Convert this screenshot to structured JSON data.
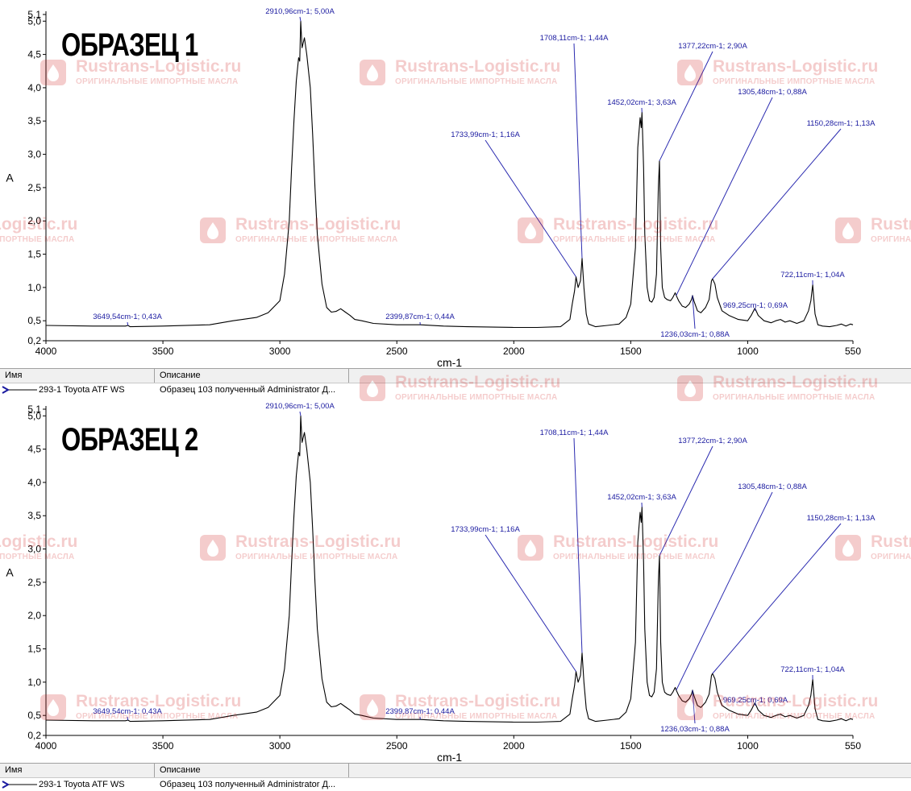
{
  "watermark": {
    "brand": "Rustrans-Logistic.ru",
    "tagline": "ОРИГИНАЛЬНЫЕ ИМПОРТНЫЕ МАСЛА",
    "color": "#d21e1e"
  },
  "panels": [
    {
      "title": "ОБРАЗЕЦ 1",
      "legend": {
        "header_name": "Имя",
        "header_description": "Описание",
        "row_name": "293-1 Toyota ATF WS",
        "row_description": "Образец 103 полученный Administrator Д..."
      }
    },
    {
      "title": "ОБРАЗЕЦ 2",
      "legend": {
        "header_name": "Имя",
        "header_description": "Описание",
        "row_name": "293-1 Toyota ATF WS",
        "row_description": "Образец 103 полученный Administrator Д..."
      }
    }
  ],
  "chart_data": [
    {
      "type": "line",
      "title": "ОБРАЗЕЦ 1",
      "xlabel": "cm-1",
      "ylabel": "A",
      "xlim": [
        4000,
        550
      ],
      "ylim": [
        0.2,
        5.1
      ],
      "xticks": [
        "4000",
        "3500",
        "3000",
        "2500",
        "2000",
        "1500",
        "1000",
        "550"
      ],
      "yticks": [
        "5,1",
        "5,0",
        "4,5",
        "4,0",
        "3,5",
        "3,0",
        "2,5",
        "2,0",
        "1,5",
        "1,0",
        "0,5",
        "0,2"
      ],
      "series": [
        {
          "name": "293-1 Toyota ATF WS",
          "x": [
            4000,
            3800,
            3660,
            3649.54,
            3640,
            3500,
            3300,
            3200,
            3160,
            3100,
            3050,
            3000,
            2980,
            2960,
            2950,
            2940,
            2930,
            2920,
            2915,
            2910.96,
            2905,
            2895,
            2885,
            2870,
            2860,
            2850,
            2840,
            2820,
            2800,
            2780,
            2760,
            2740,
            2720,
            2700,
            2680,
            2650,
            2600,
            2500,
            2399.87,
            2300,
            2200,
            2000,
            1900,
            1800,
            1760,
            1750,
            1740,
            1733.99,
            1725,
            1715,
            1708.11,
            1700,
            1690,
            1680,
            1650,
            1600,
            1550,
            1520,
            1500,
            1480,
            1470,
            1460,
            1455,
            1452.02,
            1445,
            1440,
            1430,
            1420,
            1410,
            1400,
            1390,
            1382,
            1377.22,
            1372,
            1365,
            1355,
            1345,
            1330,
            1320,
            1310,
            1305.48,
            1295,
            1280,
            1265,
            1250,
            1240,
            1236.03,
            1230,
            1215,
            1200,
            1180,
            1165,
            1160,
            1155,
            1150.28,
            1140,
            1130,
            1110,
            1080,
            1040,
            1000,
            985,
            969.25,
            955,
            930,
            900,
            880,
            860,
            840,
            820,
            790,
            760,
            740,
            730,
            725,
            722.11,
            718,
            712,
            700,
            680,
            650,
            620,
            600,
            580,
            560,
            550
          ],
          "values": [
            0.43,
            0.42,
            0.42,
            0.43,
            0.41,
            0.42,
            0.44,
            0.5,
            0.52,
            0.55,
            0.62,
            0.8,
            1.2,
            2.0,
            2.8,
            3.5,
            4.1,
            4.45,
            4.4,
            5.0,
            4.6,
            4.75,
            4.5,
            4.0,
            3.3,
            2.5,
            1.8,
            1.05,
            0.7,
            0.63,
            0.64,
            0.68,
            0.63,
            0.58,
            0.52,
            0.5,
            0.46,
            0.44,
            0.44,
            0.42,
            0.41,
            0.4,
            0.4,
            0.41,
            0.52,
            0.75,
            0.95,
            1.16,
            1.0,
            1.1,
            1.44,
            1.0,
            0.6,
            0.45,
            0.41,
            0.43,
            0.45,
            0.55,
            0.75,
            1.6,
            3.1,
            3.55,
            3.4,
            3.63,
            2.8,
            1.8,
            1.0,
            0.8,
            0.78,
            0.85,
            1.2,
            2.5,
            2.9,
            1.6,
            1.0,
            0.85,
            0.82,
            0.8,
            0.85,
            0.92,
            0.88,
            0.8,
            0.72,
            0.7,
            0.75,
            0.82,
            0.88,
            0.8,
            0.65,
            0.62,
            0.7,
            0.82,
            0.95,
            1.1,
            1.13,
            1.05,
            0.85,
            0.65,
            0.58,
            0.52,
            0.5,
            0.58,
            0.69,
            0.58,
            0.5,
            0.47,
            0.5,
            0.52,
            0.48,
            0.5,
            0.46,
            0.5,
            0.65,
            0.8,
            0.95,
            1.04,
            0.85,
            0.6,
            0.44,
            0.42,
            0.41,
            0.43,
            0.45,
            0.42,
            0.45,
            0.44
          ]
        }
      ],
      "annotations": [
        {
          "label": "2910,96cm-1; 5,00A",
          "x": 2910.96,
          "y": 5.0
        },
        {
          "label": "1708,11cm-1; 1,44A",
          "x": 1708.11,
          "y": 1.44
        },
        {
          "label": "1377,22cm-1; 2,90A",
          "x": 1377.22,
          "y": 2.9
        },
        {
          "label": "1452,02cm-1; 3,63A",
          "x": 1452.02,
          "y": 3.63
        },
        {
          "label": "1305,48cm-1; 0,88A",
          "x": 1305.48,
          "y": 0.88
        },
        {
          "label": "1733,99cm-1; 1,16A",
          "x": 1733.99,
          "y": 1.16
        },
        {
          "label": "1150,28cm-1; 1,13A",
          "x": 1150.28,
          "y": 1.13
        },
        {
          "label": "722,11cm-1; 1,04A",
          "x": 722.11,
          "y": 1.04
        },
        {
          "label": "3649,54cm-1; 0,43A",
          "x": 3649.54,
          "y": 0.43
        },
        {
          "label": "2399,87cm-1; 0,44A",
          "x": 2399.87,
          "y": 0.44
        },
        {
          "label": "969,25cm-1; 0,69A",
          "x": 969.25,
          "y": 0.69
        },
        {
          "label": "1236,03cm-1; 0,88A",
          "x": 1236.03,
          "y": 0.88
        }
      ]
    },
    {
      "type": "line",
      "title": "ОБРАЗЕЦ 2",
      "xlabel": "cm-1",
      "ylabel": "A",
      "xlim": [
        4000,
        550
      ],
      "ylim": [
        0.2,
        5.1
      ],
      "xticks": [
        "4000",
        "3500",
        "3000",
        "2500",
        "2000",
        "1500",
        "1000",
        "550"
      ],
      "yticks": [
        "5,1",
        "5,0",
        "4,5",
        "4,0",
        "3,5",
        "3,0",
        "2,5",
        "2,0",
        "1,5",
        "1,0",
        "0,5",
        "0,2"
      ],
      "series": [
        {
          "name": "293-1 Toyota ATF WS",
          "x": [
            4000,
            3800,
            3660,
            3649.54,
            3640,
            3500,
            3300,
            3200,
            3160,
            3100,
            3050,
            3000,
            2980,
            2960,
            2950,
            2940,
            2930,
            2920,
            2915,
            2910.96,
            2905,
            2895,
            2885,
            2870,
            2860,
            2850,
            2840,
            2820,
            2800,
            2780,
            2760,
            2740,
            2720,
            2700,
            2680,
            2650,
            2600,
            2500,
            2399.87,
            2300,
            2200,
            2000,
            1900,
            1800,
            1760,
            1750,
            1740,
            1733.99,
            1725,
            1715,
            1708.11,
            1700,
            1690,
            1680,
            1650,
            1600,
            1550,
            1520,
            1500,
            1480,
            1470,
            1460,
            1455,
            1452.02,
            1445,
            1440,
            1430,
            1420,
            1410,
            1400,
            1390,
            1382,
            1377.22,
            1372,
            1365,
            1355,
            1345,
            1330,
            1320,
            1310,
            1305.48,
            1295,
            1280,
            1265,
            1250,
            1240,
            1236.03,
            1230,
            1215,
            1200,
            1180,
            1165,
            1160,
            1155,
            1150.28,
            1140,
            1130,
            1110,
            1080,
            1040,
            1000,
            985,
            969.25,
            955,
            930,
            900,
            880,
            860,
            840,
            820,
            790,
            760,
            740,
            730,
            725,
            722.11,
            718,
            712,
            700,
            680,
            650,
            620,
            600,
            580,
            560,
            550
          ],
          "values": [
            0.43,
            0.42,
            0.42,
            0.43,
            0.41,
            0.42,
            0.44,
            0.5,
            0.52,
            0.55,
            0.62,
            0.8,
            1.2,
            2.0,
            2.8,
            3.5,
            4.1,
            4.45,
            4.4,
            5.0,
            4.6,
            4.75,
            4.5,
            4.0,
            3.3,
            2.5,
            1.8,
            1.05,
            0.7,
            0.63,
            0.64,
            0.68,
            0.63,
            0.58,
            0.52,
            0.5,
            0.46,
            0.44,
            0.44,
            0.42,
            0.41,
            0.4,
            0.4,
            0.41,
            0.52,
            0.75,
            0.95,
            1.16,
            1.0,
            1.1,
            1.44,
            1.0,
            0.6,
            0.45,
            0.41,
            0.43,
            0.45,
            0.55,
            0.75,
            1.6,
            3.1,
            3.55,
            3.4,
            3.63,
            2.8,
            1.8,
            1.0,
            0.8,
            0.78,
            0.85,
            1.2,
            2.5,
            2.9,
            1.6,
            1.0,
            0.85,
            0.82,
            0.8,
            0.85,
            0.92,
            0.88,
            0.8,
            0.72,
            0.7,
            0.75,
            0.82,
            0.88,
            0.8,
            0.65,
            0.62,
            0.7,
            0.82,
            0.95,
            1.1,
            1.13,
            1.05,
            0.85,
            0.65,
            0.58,
            0.52,
            0.5,
            0.58,
            0.69,
            0.58,
            0.5,
            0.47,
            0.5,
            0.52,
            0.48,
            0.5,
            0.46,
            0.5,
            0.65,
            0.8,
            0.95,
            1.04,
            0.85,
            0.6,
            0.44,
            0.42,
            0.41,
            0.43,
            0.45,
            0.42,
            0.45,
            0.44
          ]
        }
      ],
      "annotations": [
        {
          "label": "2910,96cm-1; 5,00A",
          "x": 2910.96,
          "y": 5.0
        },
        {
          "label": "1708,11cm-1; 1,44A",
          "x": 1708.11,
          "y": 1.44
        },
        {
          "label": "1377,22cm-1; 2,90A",
          "x": 1377.22,
          "y": 2.9
        },
        {
          "label": "1452,02cm-1; 3,63A",
          "x": 1452.02,
          "y": 3.63
        },
        {
          "label": "1305,48cm-1; 0,88A",
          "x": 1305.48,
          "y": 0.88
        },
        {
          "label": "1733,99cm-1; 1,16A",
          "x": 1733.99,
          "y": 1.16
        },
        {
          "label": "1150,28cm-1; 1,13A",
          "x": 1150.28,
          "y": 1.13
        },
        {
          "label": "722,11cm-1; 1,04A",
          "x": 722.11,
          "y": 1.04
        },
        {
          "label": "3649,54cm-1; 0,43A",
          "x": 3649.54,
          "y": 0.43
        },
        {
          "label": "2399,87cm-1; 0,44A",
          "x": 2399.87,
          "y": 0.44
        },
        {
          "label": "969,25cm-1; 0,69A",
          "x": 969.25,
          "y": 0.69
        },
        {
          "label": "1236,03cm-1; 0,88A",
          "x": 1236.03,
          "y": 0.88
        }
      ]
    }
  ]
}
